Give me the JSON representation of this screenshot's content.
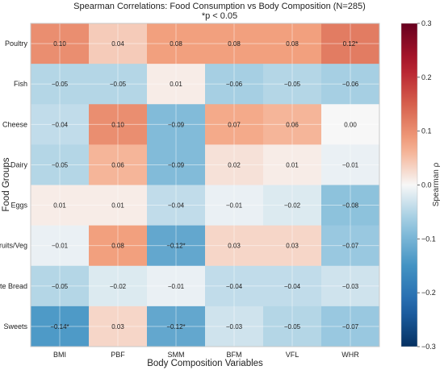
{
  "chart_data": {
    "type": "heatmap",
    "title": "Spearman Correlations: Food Consumption vs Body Composition (N=285)",
    "subtitle": "*p < 0.05",
    "xlabel": "Body Composition Variables",
    "ylabel": "Food Groups",
    "x_categories": [
      "BMI",
      "PBF",
      "SMM",
      "BFM",
      "VFL",
      "WHR"
    ],
    "y_categories": [
      "Poultry",
      "Fish",
      "Cheese",
      "Dairy",
      "Eggs",
      "Fruits/Veg",
      "White Bread",
      "Sweets"
    ],
    "values": [
      [
        0.1,
        0.04,
        0.08,
        0.08,
        0.08,
        0.12
      ],
      [
        -0.05,
        -0.05,
        0.01,
        -0.06,
        -0.05,
        -0.06
      ],
      [
        -0.04,
        0.1,
        -0.09,
        0.07,
        0.06,
        0.0
      ],
      [
        -0.05,
        0.06,
        -0.09,
        0.02,
        0.01,
        -0.01
      ],
      [
        0.01,
        0.01,
        -0.04,
        -0.01,
        -0.02,
        -0.08
      ],
      [
        -0.01,
        0.08,
        -0.12,
        0.03,
        0.03,
        -0.07
      ],
      [
        -0.05,
        -0.02,
        -0.01,
        -0.04,
        -0.04,
        -0.03
      ],
      [
        -0.14,
        0.03,
        -0.12,
        -0.03,
        -0.05,
        -0.07
      ]
    ],
    "labels": [
      [
        "0.10",
        "0.04",
        "0.08",
        "0.08",
        "0.08",
        "0.12*"
      ],
      [
        "−0.05",
        "−0.05",
        "0.01",
        "−0.06",
        "−0.05",
        "−0.06"
      ],
      [
        "−0.04",
        "0.10",
        "−0.09",
        "0.07",
        "0.06",
        "0.00"
      ],
      [
        "−0.05",
        "0.06",
        "−0.09",
        "0.02",
        "0.01",
        "−0.01"
      ],
      [
        "0.01",
        "0.01",
        "−0.04",
        "−0.01",
        "−0.02",
        "−0.08"
      ],
      [
        "−0.01",
        "0.08",
        "−0.12*",
        "0.03",
        "0.03",
        "−0.07"
      ],
      [
        "−0.05",
        "−0.02",
        "−0.01",
        "−0.04",
        "−0.04",
        "−0.03"
      ],
      [
        "−0.14*",
        "0.03",
        "−0.12*",
        "−0.03",
        "−0.05",
        "−0.07"
      ]
    ],
    "colorscale": "RdBu_r",
    "vmin": -0.3,
    "vmax": 0.3,
    "colorbar": {
      "label": "Spearman ρ",
      "ticks": [
        -0.3,
        -0.2,
        -0.1,
        0.0,
        0.1,
        0.2,
        0.3
      ],
      "tick_labels": [
        "−0.3",
        "−0.2",
        "−0.1",
        "0.0",
        "0.1",
        "0.2",
        "0.3"
      ]
    },
    "grid": true
  }
}
